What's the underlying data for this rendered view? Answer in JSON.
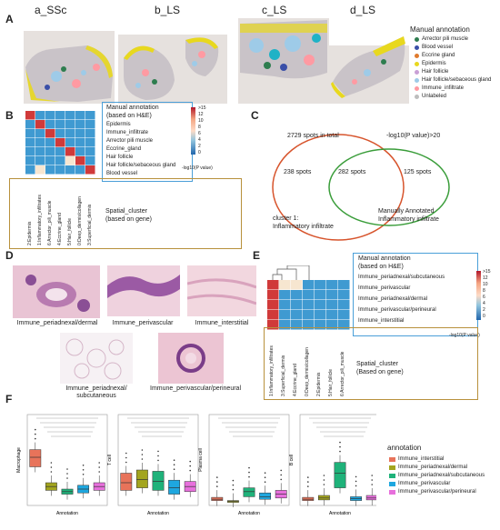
{
  "panels": {
    "A": "A",
    "B": "B",
    "C": "C",
    "D": "D",
    "E": "E",
    "F": "F"
  },
  "panelA": {
    "samples": [
      "a_SSc",
      "b_LS",
      "c_LS",
      "d_LS"
    ],
    "legend_title": "Manual annotation",
    "legend": [
      {
        "label": "Arrector pili muscle",
        "color": "#2e7d4f"
      },
      {
        "label": "Blood vessel",
        "color": "#3a4fa8"
      },
      {
        "label": "Eccrine gland",
        "color": "#e07b2e"
      },
      {
        "label": "Epidermis",
        "color": "#e8d81e"
      },
      {
        "label": "Hair follicle",
        "color": "#c9a0d6"
      },
      {
        "label": "Hair follicle/sebaceous gland",
        "color": "#9ecbe8"
      },
      {
        "label": "Immune_infiltrate",
        "color": "#ff9aa2"
      },
      {
        "label": "Unlabeled",
        "color": "#bdbdbd"
      }
    ]
  },
  "panelB": {
    "title_line1": "Manual annotation",
    "title_line2": "(based on H&E)",
    "rows": [
      "Epidermis",
      "Immune_infiltrate",
      "Arrector pili muscle",
      "Eccrine_gland",
      "Hair follicle",
      "Hair follicle/sebaceous gland",
      "Blood vessel"
    ],
    "cols": [
      "2:Epidermis",
      "1:Inflammatory_infiltrates",
      "6:Arrector_pili_muscle",
      "4:Eccrine_gland",
      "5:Hair_follicle",
      "0:Deep_dermis/collagen",
      "3:Superficial_dermis"
    ],
    "colorbar_ticks": [
      ">15",
      "12",
      "10",
      "8",
      "6",
      "4",
      "2",
      "0"
    ],
    "colorbar_label": "-log10(P value)",
    "spatial_line1": "Spatial_cluster",
    "spatial_line2": "(based on gene)"
  },
  "panelC": {
    "total": "2729 spots in total",
    "pval": "-log10(P value)>20",
    "left": "238 spots",
    "mid": "282 spots",
    "right": "125 spots",
    "left_label1": "cluster 1:",
    "left_label2": "Inflammatory infiltrate",
    "right_label1": "Manually Annotated",
    "right_label2": "Inflammatory infiltrate"
  },
  "panelD": {
    "captions": [
      "Immune_periadnexal/dermal",
      "Immune_perivascular",
      "Immune_interstitial",
      "Immune_periadnexal/",
      "subcutaneous",
      "Immune_perivascular/perineural"
    ]
  },
  "panelE": {
    "title_line1": "Manual annotation",
    "title_line2": "(based on H&E)",
    "rows": [
      "Immune_periadnexal/subcutaneous",
      "Immune_perivascular",
      "Immune_periadnexal/dermal",
      "Immune_perivascular/perineural",
      "Immune_interstitial"
    ],
    "cols": [
      "1:Inflammatory_infiltrates",
      "3:Superficial_dermis",
      "4:Eccrine_gland",
      "0:Deep_dermis/collagen",
      "2:Epidermis",
      "5:Hair_follicle",
      "6:Arrector_pili_muscle"
    ],
    "colorbar_ticks": [
      ">15",
      "12",
      "10",
      "8",
      "6",
      "4",
      "2",
      "0"
    ],
    "colorbar_label": "-log10(P value)",
    "spatial_line1": "Spatial_cluster",
    "spatial_line2": "(Based on gene)"
  },
  "panelF": {
    "legend_title": "annotation",
    "legend": [
      {
        "label": "Immune_interstitial",
        "color": "#e8735a"
      },
      {
        "label": "Immune_periadnexal/dermal",
        "color": "#a3a51e"
      },
      {
        "label": "Immune_periadnexal/subcutaneous",
        "color": "#1fb27a"
      },
      {
        "label": "Immune_perivascular",
        "color": "#1ea7df"
      },
      {
        "label": "Immune_perivascular/perineural",
        "color": "#e76fdc"
      }
    ],
    "plots": [
      {
        "ylabel": "Macrophage",
        "xlabel": "Annotation"
      },
      {
        "ylabel": "T cell",
        "xlabel": "Annotation"
      },
      {
        "ylabel": "Plasma cell",
        "xlabel": "Annotation"
      },
      {
        "ylabel": "B cell",
        "xlabel": "Annotation"
      }
    ]
  }
}
